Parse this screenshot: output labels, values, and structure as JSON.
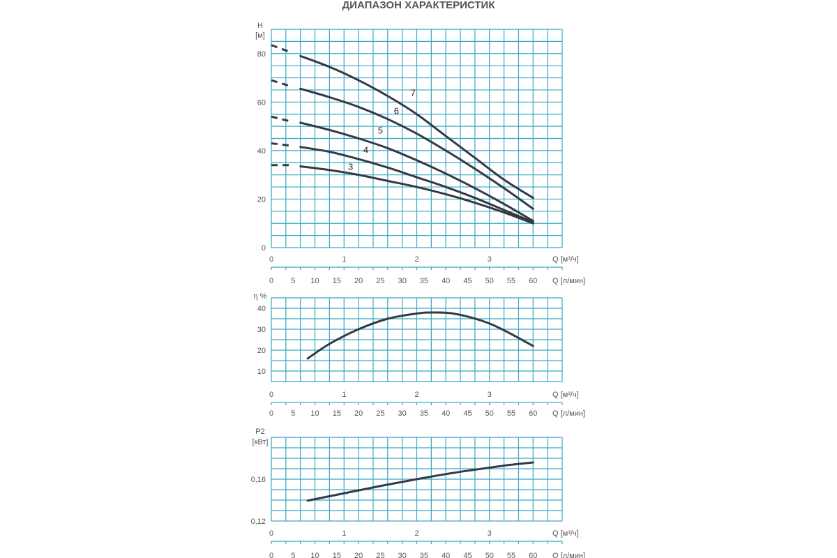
{
  "page": {
    "title": "ДИАПАЗОН ХАРАКТЕРИСТИК"
  },
  "colors": {
    "grid": "#3aa7c4",
    "curve": "#333a44",
    "text": "#555555"
  },
  "chart_data": [
    {
      "id": "head",
      "type": "line",
      "ylabel_top": "H",
      "ylabel_unit": "[м]",
      "ylim": [
        0,
        90
      ],
      "y_ticks": [
        0,
        20,
        40,
        60,
        80
      ],
      "x_axis_m3h": {
        "label": "Q [м³/ч]",
        "min": 0,
        "max": 4,
        "ticks": [
          0,
          1,
          2,
          3
        ]
      },
      "x_axis_lmin": {
        "label": "Q [л/мин]",
        "ticks": [
          0,
          5,
          10,
          15,
          20,
          25,
          30,
          35,
          40,
          45,
          50,
          55,
          60
        ]
      },
      "series": [
        {
          "name": "7",
          "dashed": [
            [
              0,
              83.5
            ],
            [
              0.27,
              80.5
            ]
          ],
          "points": [
            [
              0.4,
              79
            ],
            [
              0.8,
              74.5
            ],
            [
              1.2,
              69
            ],
            [
              1.6,
              62.5
            ],
            [
              2.0,
              55
            ],
            [
              2.4,
              46
            ],
            [
              2.8,
              37
            ],
            [
              3.2,
              28
            ],
            [
              3.6,
              20.5
            ]
          ]
        },
        {
          "name": "6",
          "dashed": [
            [
              0,
              69
            ],
            [
              0.27,
              66.5
            ]
          ],
          "points": [
            [
              0.4,
              65.5
            ],
            [
              0.8,
              62
            ],
            [
              1.2,
              58
            ],
            [
              1.6,
              53
            ],
            [
              2.0,
              47
            ],
            [
              2.4,
              40
            ],
            [
              2.8,
              32.5
            ],
            [
              3.2,
              24.5
            ],
            [
              3.6,
              16
            ]
          ]
        },
        {
          "name": "5",
          "dashed": [
            [
              0,
              54
            ],
            [
              0.27,
              52
            ]
          ],
          "points": [
            [
              0.4,
              51.5
            ],
            [
              0.8,
              48.5
            ],
            [
              1.2,
              45
            ],
            [
              1.6,
              41
            ],
            [
              2.0,
              36
            ],
            [
              2.4,
              30.5
            ],
            [
              2.8,
              24.5
            ],
            [
              3.2,
              18
            ],
            [
              3.6,
              11
            ]
          ]
        },
        {
          "name": "4",
          "dashed": [
            [
              0,
              43
            ],
            [
              0.27,
              42
            ]
          ],
          "points": [
            [
              0.4,
              41.5
            ],
            [
              0.8,
              39.5
            ],
            [
              1.2,
              36.5
            ],
            [
              1.6,
              33
            ],
            [
              2.0,
              29
            ],
            [
              2.4,
              25
            ],
            [
              2.8,
              20.5
            ],
            [
              3.2,
              15.5
            ],
            [
              3.6,
              10.5
            ]
          ]
        },
        {
          "name": "3",
          "dashed": [
            [
              0,
              34
            ],
            [
              0.27,
              34
            ]
          ],
          "points": [
            [
              0.4,
              33.5
            ],
            [
              0.8,
              32
            ],
            [
              1.2,
              30
            ],
            [
              1.6,
              27.5
            ],
            [
              2.0,
              25
            ],
            [
              2.4,
              22
            ],
            [
              2.8,
              18.5
            ],
            [
              3.2,
              14.5
            ],
            [
              3.6,
              10
            ]
          ]
        }
      ],
      "curve_labels": [
        {
          "text": "7",
          "x": 1.95,
          "y": 62.5
        },
        {
          "text": "6",
          "x": 1.72,
          "y": 55
        },
        {
          "text": "5",
          "x": 1.5,
          "y": 47
        },
        {
          "text": "4",
          "x": 1.3,
          "y": 39
        },
        {
          "text": "3",
          "x": 1.09,
          "y": 32
        }
      ]
    },
    {
      "id": "efficiency",
      "type": "line",
      "ylabel_top": "η %",
      "ylim": [
        5,
        45
      ],
      "y_ticks": [
        10,
        20,
        30,
        40
      ],
      "x_axis_m3h": {
        "label": "Q [м³/ч]",
        "min": 0,
        "max": 4,
        "ticks": [
          0,
          1,
          2,
          3
        ]
      },
      "x_axis_lmin": {
        "label": "Q [л/мин]",
        "ticks": [
          0,
          5,
          10,
          15,
          20,
          25,
          30,
          35,
          40,
          45,
          50,
          55,
          60
        ]
      },
      "series": [
        {
          "points": [
            [
              0.5,
              16
            ],
            [
              0.8,
              23
            ],
            [
              1.2,
              30
            ],
            [
              1.6,
              35
            ],
            [
              2.0,
              37.5
            ],
            [
              2.2,
              38
            ],
            [
              2.5,
              37.5
            ],
            [
              2.9,
              34
            ],
            [
              3.2,
              29.5
            ],
            [
              3.6,
              22
            ]
          ]
        }
      ]
    },
    {
      "id": "power",
      "type": "line",
      "ylabel_top": "P2",
      "ylabel_unit": "[кВт]",
      "ylim": [
        0.12,
        0.2
      ],
      "y_ticks": [
        0.12,
        0.16
      ],
      "y_tick_labels": [
        "0,12",
        "0,16"
      ],
      "x_axis_m3h": {
        "label": "Q [м³/ч]",
        "min": 0,
        "max": 4,
        "ticks": [
          0,
          1,
          2,
          3
        ]
      },
      "x_axis_lmin": {
        "label": "Q [л/мин]",
        "ticks": [
          0,
          5,
          10,
          15,
          20,
          25,
          30,
          35,
          40,
          45,
          50,
          55,
          60
        ]
      },
      "series": [
        {
          "points": [
            [
              0.5,
              0.1395
            ],
            [
              1.0,
              0.1465
            ],
            [
              1.5,
              0.1535
            ],
            [
              2.0,
              0.16
            ],
            [
              2.5,
              0.166
            ],
            [
              3.0,
              0.171
            ],
            [
              3.3,
              0.1738
            ],
            [
              3.6,
              0.176
            ]
          ]
        }
      ]
    }
  ]
}
